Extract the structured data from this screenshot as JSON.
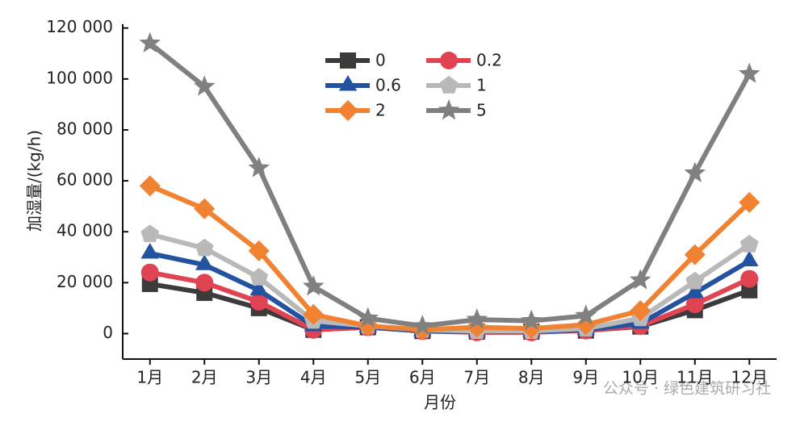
{
  "chart_data": {
    "type": "line",
    "categories": [
      "1月",
      "2月",
      "3月",
      "4月",
      "5月",
      "6月",
      "7月",
      "8月",
      "9月",
      "10月",
      "11月",
      "12月"
    ],
    "series": [
      {
        "name": "0",
        "color": "#3b3b3b",
        "marker": "square",
        "values": [
          19500,
          16000,
          10000,
          1500,
          2500,
          1000,
          800,
          800,
          1200,
          2800,
          9200,
          17000
        ]
      },
      {
        "name": "0.2",
        "color": "#e04452",
        "marker": "circle",
        "values": [
          24000,
          20000,
          12500,
          1500,
          2500,
          1000,
          500,
          500,
          1200,
          3000,
          11500,
          21500
        ]
      },
      {
        "name": "0.6",
        "color": "#2352a0",
        "marker": "triangle",
        "values": [
          31500,
          27000,
          17000,
          3000,
          2500,
          1000,
          800,
          800,
          1500,
          4000,
          16000,
          28500
        ]
      },
      {
        "name": "1",
        "color": "#b9b9b9",
        "marker": "pentagon",
        "values": [
          39000,
          33500,
          22000,
          5000,
          3000,
          1500,
          1000,
          1000,
          2000,
          6000,
          20500,
          35000
        ]
      },
      {
        "name": "2",
        "color": "#f08232",
        "marker": "diamond",
        "values": [
          58000,
          49000,
          32500,
          7500,
          3000,
          1500,
          2500,
          2000,
          3500,
          9000,
          31000,
          51500
        ]
      },
      {
        "name": "5",
        "color": "#808080",
        "marker": "star",
        "values": [
          114000,
          97000,
          65000,
          18500,
          6000,
          3000,
          5500,
          5000,
          7000,
          21000,
          63000,
          102000
        ]
      }
    ],
    "ylim": [
      -10000,
      121500
    ],
    "yticks": [
      {
        "value": 120000,
        "label": "120 000"
      },
      {
        "value": 100000,
        "label": "100 000"
      },
      {
        "value": 80000,
        "label": "80 000"
      },
      {
        "value": 60000,
        "label": "60 000"
      },
      {
        "value": 40000,
        "label": "40 000"
      },
      {
        "value": 20000,
        "label": "20 000"
      },
      0
    ],
    "y_label": "加湿量/(kg/h)",
    "x_label": "月份",
    "watermark": "公众号 · 绿色建筑研习社"
  }
}
